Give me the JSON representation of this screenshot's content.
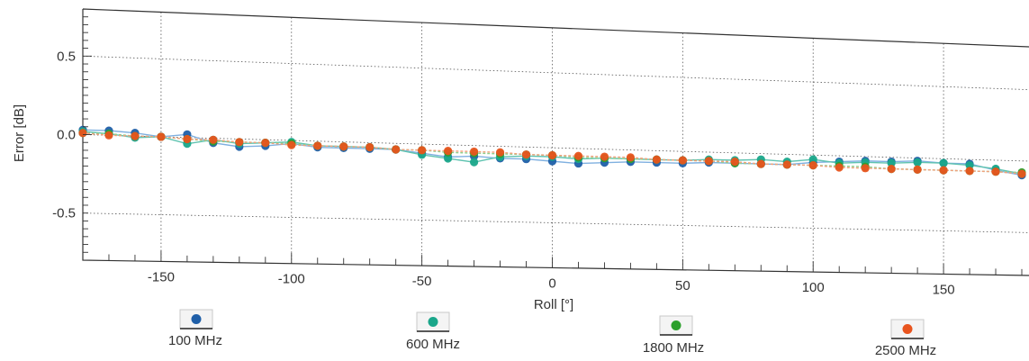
{
  "chart_data": {
    "type": "line",
    "title": "",
    "xlabel": "Roll [°]",
    "ylabel": "Error [dB]",
    "xlim": [
      -180,
      180
    ],
    "ylim": [
      -0.8,
      0.8
    ],
    "xticks": [
      -150,
      -100,
      -50,
      0,
      50,
      100,
      150
    ],
    "yticks": [
      0.5,
      0.0,
      -0.5
    ],
    "ytick_labels": [
      "0.5",
      "0.0",
      "-0.5"
    ],
    "grid": true,
    "legend_position": "bottom",
    "x": [
      -180,
      -170,
      -160,
      -150,
      -140,
      -130,
      -120,
      -110,
      -100,
      -90,
      -80,
      -70,
      -60,
      -50,
      -40,
      -30,
      -20,
      -10,
      0,
      10,
      20,
      30,
      40,
      50,
      60,
      70,
      80,
      90,
      100,
      110,
      120,
      130,
      140,
      150,
      160,
      170,
      180
    ],
    "series": [
      {
        "name": "100 MHz",
        "color": "#1f5fa8",
        "line_color": "#7fb0e0",
        "values": [
          0.03,
          0.03,
          0.02,
          0.0,
          0.02,
          -0.03,
          -0.05,
          -0.04,
          -0.02,
          -0.04,
          -0.04,
          -0.04,
          -0.04,
          -0.06,
          -0.08,
          -0.07,
          -0.08,
          -0.08,
          -0.09,
          -0.1,
          -0.09,
          -0.08,
          -0.08,
          -0.08,
          -0.07,
          -0.07,
          -0.07,
          -0.07,
          -0.05,
          -0.04,
          -0.03,
          -0.03,
          -0.02,
          -0.03,
          -0.03,
          -0.07,
          -0.1
        ]
      },
      {
        "name": "600 MHz",
        "color": "#1aa68a",
        "line_color": "#5fc3b0",
        "values": [
          0.02,
          0.01,
          -0.01,
          0.0,
          -0.04,
          -0.01,
          -0.03,
          -0.02,
          -0.01,
          -0.03,
          -0.03,
          -0.03,
          -0.04,
          -0.07,
          -0.09,
          -0.11,
          -0.07,
          -0.06,
          -0.06,
          -0.07,
          -0.06,
          -0.06,
          -0.06,
          -0.06,
          -0.05,
          -0.05,
          -0.04,
          -0.05,
          -0.03,
          -0.05,
          -0.04,
          -0.04,
          -0.03,
          -0.03,
          -0.04,
          -0.06,
          -0.09
        ]
      },
      {
        "name": "1800 MHz",
        "color": "#2ca02c",
        "line_color": "#8fd08f",
        "values": [
          0.01,
          0.01,
          0.0,
          0.0,
          -0.01,
          -0.02,
          -0.02,
          -0.02,
          -0.02,
          -0.03,
          -0.03,
          -0.03,
          -0.04,
          -0.04,
          -0.05,
          -0.05,
          -0.05,
          -0.05,
          -0.05,
          -0.06,
          -0.06,
          -0.06,
          -0.06,
          -0.06,
          -0.06,
          -0.07,
          -0.07,
          -0.07,
          -0.07,
          -0.07,
          -0.07,
          -0.08,
          -0.08,
          -0.08,
          -0.08,
          -0.08,
          -0.08
        ]
      },
      {
        "name": "2500 MHz",
        "color": "#e8541e",
        "line_color": "#f2a07c",
        "values": [
          0.01,
          0.0,
          0.0,
          0.0,
          -0.01,
          -0.01,
          -0.02,
          -0.02,
          -0.03,
          -0.03,
          -0.03,
          -0.03,
          -0.04,
          -0.04,
          -0.04,
          -0.04,
          -0.04,
          -0.05,
          -0.05,
          -0.05,
          -0.05,
          -0.05,
          -0.06,
          -0.06,
          -0.06,
          -0.06,
          -0.07,
          -0.07,
          -0.07,
          -0.08,
          -0.08,
          -0.08,
          -0.08,
          -0.08,
          -0.08,
          -0.08,
          -0.09
        ]
      }
    ]
  }
}
